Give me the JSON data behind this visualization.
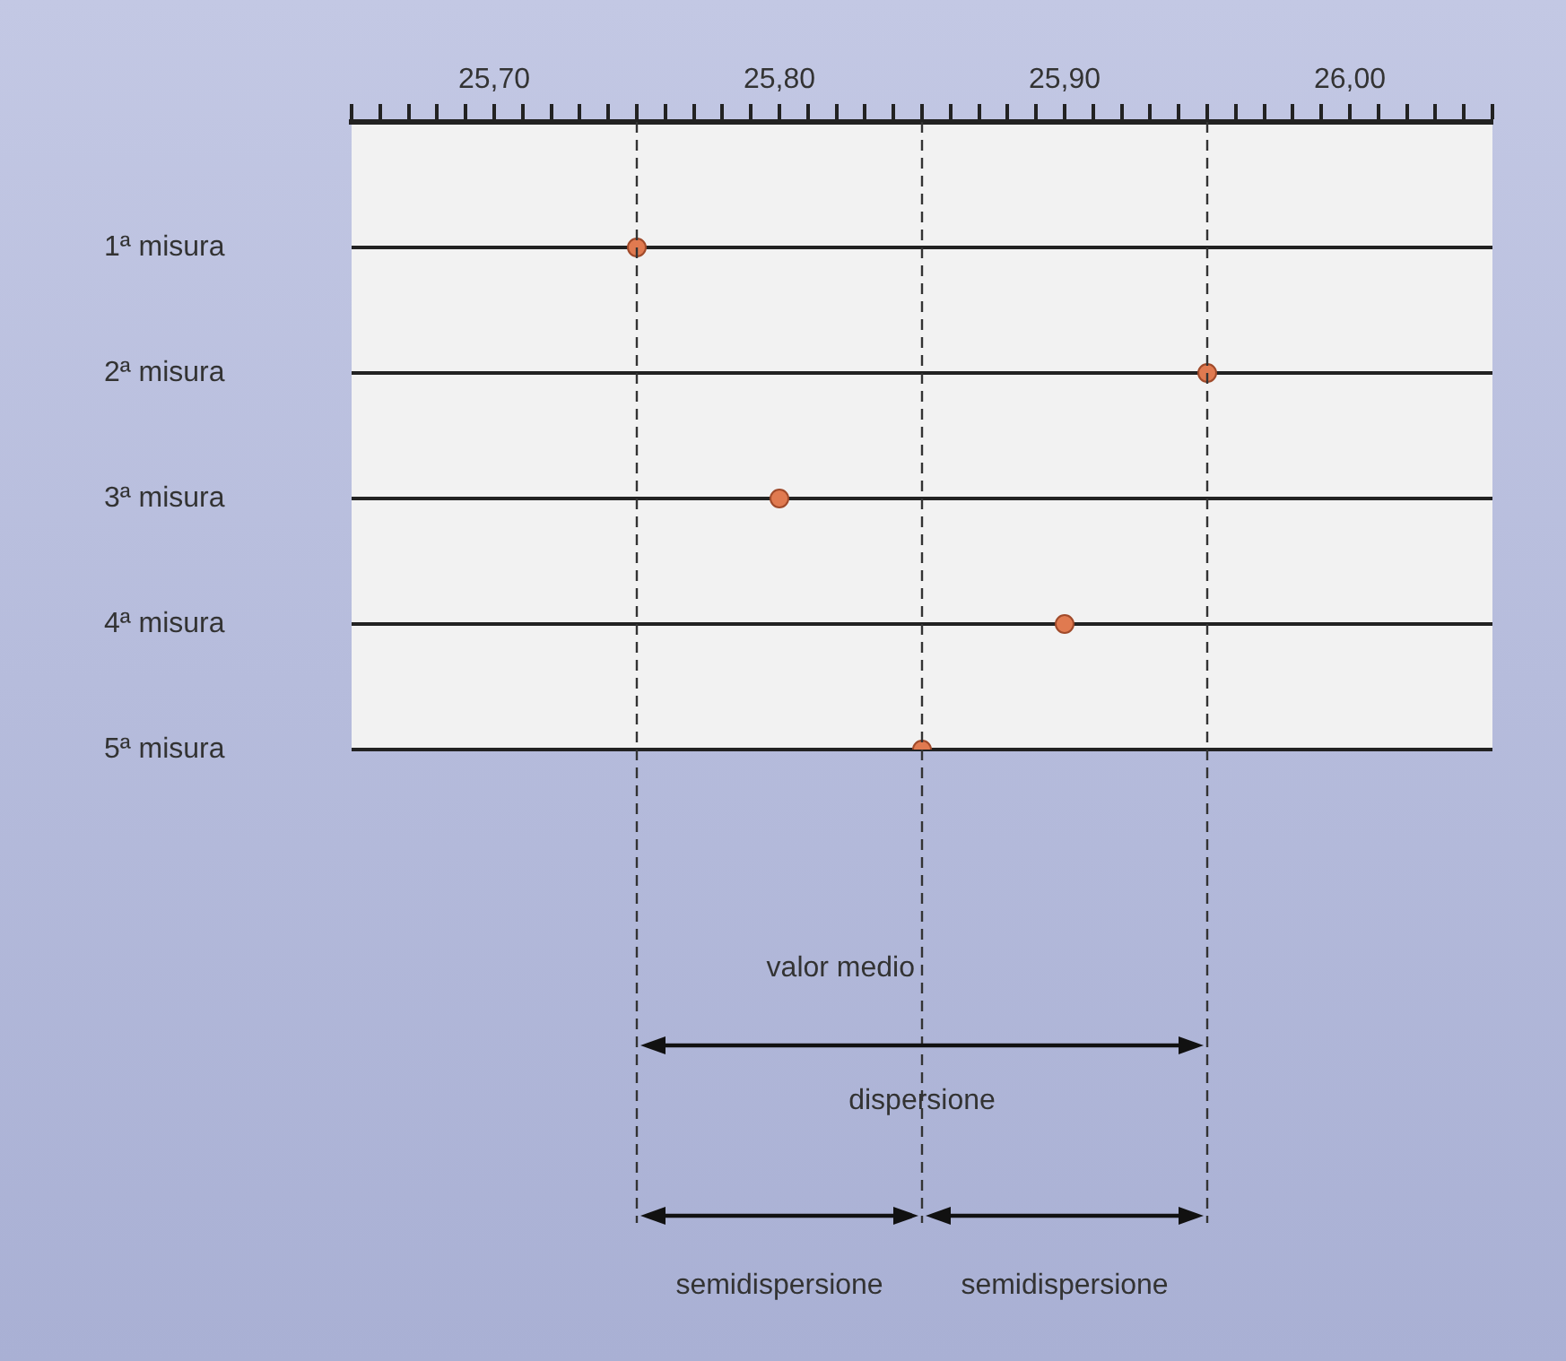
{
  "chart_data": {
    "type": "scatter",
    "categories": [
      "1ª misura",
      "2ª misura",
      "3ª misura",
      "4ª misura",
      "5ª misura"
    ],
    "values": [
      25.75,
      25.95,
      25.8,
      25.9,
      25.85
    ],
    "color": "#e07a50",
    "marker": "circle",
    "orientation": "horizontal",
    "xlim": [
      25.65,
      26.05
    ],
    "xticks": [
      {
        "value": 25.65,
        "label": null
      },
      {
        "value": 25.66,
        "label": null
      },
      {
        "value": 25.67,
        "label": null
      },
      {
        "value": 25.68,
        "label": null
      },
      {
        "value": 25.69,
        "label": null
      },
      {
        "value": 25.7,
        "label": "25,70"
      },
      {
        "value": 25.71,
        "label": null
      },
      {
        "value": 25.72,
        "label": null
      },
      {
        "value": 25.73,
        "label": null
      },
      {
        "value": 25.74,
        "label": null
      },
      {
        "value": 25.75,
        "label": null
      },
      {
        "value": 25.76,
        "label": null
      },
      {
        "value": 25.77,
        "label": null
      },
      {
        "value": 25.78,
        "label": null
      },
      {
        "value": 25.79,
        "label": null
      },
      {
        "value": 25.8,
        "label": "25,80"
      },
      {
        "value": 25.81,
        "label": null
      },
      {
        "value": 25.82,
        "label": null
      },
      {
        "value": 25.83,
        "label": null
      },
      {
        "value": 25.84,
        "label": null
      },
      {
        "value": 25.85,
        "label": null
      },
      {
        "value": 25.86,
        "label": null
      },
      {
        "value": 25.87,
        "label": null
      },
      {
        "value": 25.88,
        "label": null
      },
      {
        "value": 25.89,
        "label": null
      },
      {
        "value": 25.9,
        "label": "25,90"
      },
      {
        "value": 25.91,
        "label": null
      },
      {
        "value": 25.92,
        "label": null
      },
      {
        "value": 25.93,
        "label": null
      },
      {
        "value": 25.94,
        "label": null
      },
      {
        "value": 25.95,
        "label": null
      },
      {
        "value": 25.96,
        "label": null
      },
      {
        "value": 25.97,
        "label": null
      },
      {
        "value": 25.98,
        "label": null
      },
      {
        "value": 25.99,
        "label": null
      },
      {
        "value": 26.0,
        "label": "26,00"
      },
      {
        "value": 26.01,
        "label": null
      },
      {
        "value": 26.02,
        "label": null
      },
      {
        "value": 26.03,
        "label": null
      },
      {
        "value": 26.04,
        "label": null
      },
      {
        "value": 26.05,
        "label": null
      }
    ],
    "grid": "y",
    "legend": false,
    "ref_lines": [
      {
        "axis": "x",
        "value": 25.75,
        "line_style": "dashed",
        "color": "#333333"
      },
      {
        "axis": "x",
        "value": 25.85,
        "label": "valor medio",
        "line_style": "dashed",
        "color": "#333333"
      },
      {
        "axis": "x",
        "value": 25.95,
        "line_style": "dashed",
        "color": "#333333"
      }
    ],
    "annotations": [
      "dispersione",
      "semidispersione",
      "semidispersione"
    ]
  }
}
